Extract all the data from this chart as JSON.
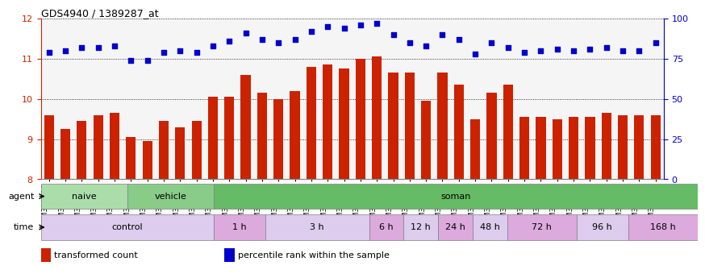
{
  "title": "GDS4940 / 1389287_at",
  "gsm_labels": [
    "GSM338857",
    "GSM338858",
    "GSM338859",
    "GSM338862",
    "GSM338864",
    "GSM338877",
    "GSM338880",
    "GSM338860",
    "GSM338861",
    "GSM338863",
    "GSM338865",
    "GSM338866",
    "GSM338867",
    "GSM338868",
    "GSM338869",
    "GSM338870",
    "GSM338871",
    "GSM338872",
    "GSM338873",
    "GSM338874",
    "GSM338875",
    "GSM338876",
    "GSM338878",
    "GSM338879",
    "GSM338881",
    "GSM338882",
    "GSM338883",
    "GSM338884",
    "GSM338885",
    "GSM338886",
    "GSM338887",
    "GSM338888",
    "GSM338889",
    "GSM338890",
    "GSM338891",
    "GSM338892",
    "GSM338893",
    "GSM338894"
  ],
  "bar_values": [
    9.6,
    9.25,
    9.45,
    9.6,
    9.65,
    9.05,
    8.95,
    9.45,
    9.3,
    9.45,
    10.05,
    10.05,
    10.6,
    10.15,
    10.0,
    10.2,
    10.8,
    10.85,
    10.75,
    11.0,
    11.05,
    10.65,
    10.65,
    9.95,
    10.65,
    10.35,
    9.5,
    10.15,
    10.35,
    9.55,
    9.55,
    9.5,
    9.55,
    9.55,
    9.65,
    9.6,
    9.6,
    9.6
  ],
  "percentile_values": [
    79,
    80,
    82,
    82,
    83,
    74,
    74,
    79,
    80,
    79,
    83,
    86,
    91,
    87,
    85,
    87,
    92,
    95,
    94,
    96,
    97,
    90,
    85,
    83,
    90,
    87,
    78,
    85,
    82,
    79,
    80,
    81,
    80,
    81,
    82,
    80,
    80,
    85
  ],
  "bar_color": "#cc2200",
  "percentile_color": "#0000cc",
  "ylim_left": [
    8,
    12
  ],
  "ylim_right": [
    0,
    100
  ],
  "yticks_left": [
    8,
    9,
    10,
    11,
    12
  ],
  "yticks_right": [
    0,
    25,
    50,
    75,
    100
  ],
  "agent_groups": [
    {
      "label": "naive",
      "start": 0,
      "end": 5,
      "color": "#aaddaa"
    },
    {
      "label": "vehicle",
      "start": 5,
      "end": 10,
      "color": "#88cc88"
    },
    {
      "label": "soman",
      "start": 10,
      "end": 38,
      "color": "#66bb66"
    }
  ],
  "time_groups": [
    {
      "label": "control",
      "start": 0,
      "end": 10,
      "color": "#ddccee"
    },
    {
      "label": "1 h",
      "start": 10,
      "end": 13,
      "color": "#ddaadd"
    },
    {
      "label": "3 h",
      "start": 13,
      "end": 19,
      "color": "#ddccee"
    },
    {
      "label": "6 h",
      "start": 19,
      "end": 21,
      "color": "#ddaadd"
    },
    {
      "label": "12 h",
      "start": 21,
      "end": 23,
      "color": "#ddccee"
    },
    {
      "label": "24 h",
      "start": 23,
      "end": 25,
      "color": "#ddaadd"
    },
    {
      "label": "48 h",
      "start": 25,
      "end": 27,
      "color": "#ddccee"
    },
    {
      "label": "72 h",
      "start": 27,
      "end": 31,
      "color": "#ddaadd"
    },
    {
      "label": "96 h",
      "start": 31,
      "end": 34,
      "color": "#ddccee"
    },
    {
      "label": "168 h",
      "start": 34,
      "end": 38,
      "color": "#ddaadd"
    }
  ],
  "agent_label": "agent",
  "time_label": "time",
  "legend_bar": "transformed count",
  "legend_percentile": "percentile rank within the sample",
  "bg_color": "#ffffff",
  "grid_color": "#000000",
  "plot_bg": "#f5f5f5"
}
